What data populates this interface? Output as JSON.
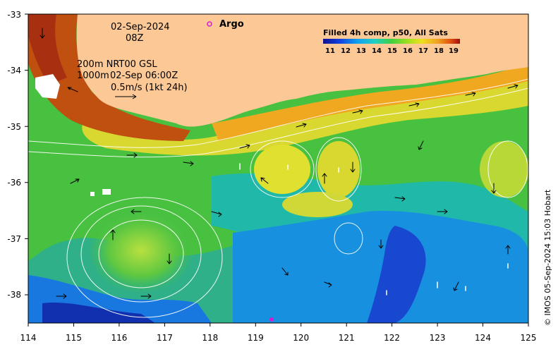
{
  "header": {
    "date": "02-Sep-2024",
    "hour": "08Z"
  },
  "argo_label": "Argo",
  "current_legend": {
    "line1": "200m  NRT00 GSL",
    "line2a": "1000m",
    "line2b": "02-Sep 06:00Z",
    "line3": "0.5m/s (1kt 24h)"
  },
  "colorbar": {
    "title": "Filled 4h comp, p50, All Sats",
    "labels": [
      "11",
      "12",
      "13",
      "14",
      "15",
      "16",
      "17",
      "18",
      "19"
    ]
  },
  "axes": {
    "x_ticks": [
      "114",
      "115",
      "116",
      "117",
      "118",
      "119",
      "120",
      "121",
      "122",
      "123",
      "124",
      "125"
    ],
    "y_ticks": [
      "-33",
      "-34",
      "-35",
      "-36",
      "-37",
      "-38"
    ]
  },
  "credit": "© IMOS 05-Sep-2024 15:03 Hobart",
  "colors": {
    "land": "#fcc896",
    "argo_marker": "#d020d0"
  }
}
